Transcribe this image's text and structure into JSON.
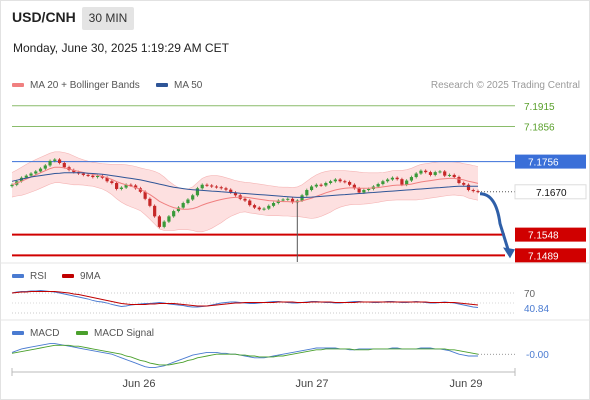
{
  "header": {
    "symbol": "USD/CNH",
    "timeframe": "30 MIN",
    "datetime": "Monday, June 30, 2025 1:19:29 AM CET"
  },
  "legend": {
    "ma20": "MA 20 + Bollinger Bands",
    "ma50": "MA 50",
    "credit": "Research © 2025 Trading Central",
    "rsi": "RSI",
    "rsi_ma": "9MA",
    "macd": "MACD",
    "macd_signal": "MACD Signal"
  },
  "colors": {
    "ma20": "#f08080",
    "ma50": "#2f5597",
    "bollinger_fill": "#fde0e0",
    "green_level": "#5aa02c",
    "blue_level": "#3a6fd8",
    "red_level": "#d00000",
    "arrow": "#2f5fa8",
    "candle_up": "#3a9a3a",
    "candle_down": "#c62828",
    "rsi": "#4a7bd1",
    "rsi_ma": "#c00000",
    "macd": "#4a7bd1",
    "macd_signal": "#4aa02c"
  },
  "chart_data": [
    {
      "type": "candlestick",
      "title": "USD/CNH 30 MIN",
      "x_ticks": [
        "Jun 26",
        "Jun 27",
        "Jun 29"
      ],
      "ylim": [
        7.147,
        7.194
      ],
      "levels": [
        {
          "value": 7.1915,
          "label": "7.1915",
          "kind": "resistance",
          "color": "green"
        },
        {
          "value": 7.1856,
          "label": "7.1856",
          "kind": "resistance",
          "color": "green"
        },
        {
          "value": 7.1756,
          "label": "7.1756",
          "kind": "pivot",
          "color": "blue"
        },
        {
          "value": 7.167,
          "label": "7.1670",
          "kind": "last-price",
          "color": "black"
        },
        {
          "value": 7.1548,
          "label": "7.1548",
          "kind": "support",
          "color": "red"
        },
        {
          "value": 7.1489,
          "label": "7.1489",
          "kind": "support",
          "color": "red"
        }
      ],
      "arrow": {
        "direction": "down",
        "from": 7.167,
        "to": 7.1489
      },
      "close": [
        7.169,
        7.17,
        7.171,
        7.1716,
        7.1722,
        7.1728,
        7.1736,
        7.1745,
        7.1758,
        7.1762,
        7.1752,
        7.174,
        7.1732,
        7.1726,
        7.1722,
        7.1718,
        7.1716,
        7.1712,
        7.1715,
        7.171,
        7.17,
        7.1695,
        7.1678,
        7.1682,
        7.169,
        7.1688,
        7.168,
        7.167,
        7.165,
        7.163,
        7.16,
        7.157,
        7.1585,
        7.16,
        7.1615,
        7.1625,
        7.1638,
        7.1648,
        7.166,
        7.168,
        7.169,
        7.1688,
        7.1685,
        7.1683,
        7.168,
        7.1676,
        7.1668,
        7.166,
        7.165,
        7.1645,
        7.1632,
        7.1625,
        7.162,
        7.1622,
        7.163,
        7.1638,
        7.1645,
        7.1648,
        7.165,
        7.164,
        7.1645,
        7.166,
        7.1675,
        7.1685,
        7.169,
        7.1688,
        7.1695,
        7.17,
        7.1705,
        7.17,
        7.1698,
        7.169,
        7.168,
        7.1668,
        7.1675,
        7.1678,
        7.1685,
        7.1692,
        7.17,
        7.1705,
        7.171,
        7.1706,
        7.169,
        7.1702,
        7.1712,
        7.1722,
        7.173,
        7.1726,
        7.1718,
        7.1726,
        7.1728,
        7.1716,
        7.1718,
        7.1712,
        7.1695,
        7.169,
        7.1675,
        7.1672,
        7.167
      ],
      "ma20": [
        7.169,
        7.1695,
        7.17,
        7.1706,
        7.1712,
        7.1718,
        7.1724,
        7.173,
        7.1736,
        7.174,
        7.174,
        7.1738,
        7.1735,
        7.1731,
        7.1728,
        7.1725,
        7.1722,
        7.172,
        7.1717,
        7.1714,
        7.171,
        7.1705,
        7.1699,
        7.1694,
        7.169,
        7.1686,
        7.1682,
        7.1677,
        7.167,
        7.1662,
        7.1653,
        7.1643,
        7.1636,
        7.163,
        7.1625,
        7.1622,
        7.162,
        7.162,
        7.1622,
        7.1626,
        7.1632,
        7.1637,
        7.1641,
        7.1645,
        7.1648,
        7.1651,
        7.1653,
        7.1654,
        7.1655,
        7.1655,
        7.1653,
        7.1651,
        7.1649,
        7.1647,
        7.1645,
        7.1644,
        7.1643,
        7.1642,
        7.1642,
        7.1641,
        7.1642,
        7.1644,
        7.1648,
        7.1652,
        7.1657,
        7.1662,
        7.1667,
        7.1671,
        7.1675,
        7.1678,
        7.168,
        7.1681,
        7.1681,
        7.168,
        7.168,
        7.168,
        7.1681,
        7.1682,
        7.1684,
        7.1686,
        7.1688,
        7.1689,
        7.1689,
        7.169,
        7.1692,
        7.1695,
        7.1698,
        7.17,
        7.1702,
        7.1704,
        7.1706,
        7.1707,
        7.1708,
        7.1708,
        7.1706,
        7.1704,
        7.17,
        7.1697,
        7.1694
      ],
      "ma50": [
        7.17,
        7.1703,
        7.1706,
        7.1709,
        7.1712,
        7.1714,
        7.1716,
        7.1718,
        7.172,
        7.1722,
        7.1723,
        7.1724,
        7.1724,
        7.1724,
        7.1724,
        7.1724,
        7.1723,
        7.1722,
        7.1721,
        7.172,
        7.1718,
        7.1716,
        7.1714,
        7.1712,
        7.171,
        7.1708,
        7.1706,
        7.1704,
        7.1701,
        7.1698,
        7.1695,
        7.1692,
        7.1689,
        7.1686,
        7.1683,
        7.1681,
        7.1679,
        7.1677,
        7.1676,
        7.1675,
        7.1674,
        7.1673,
        7.1672,
        7.1671,
        7.167,
        7.1669,
        7.1668,
        7.1667,
        7.1666,
        7.1665,
        7.1664,
        7.1663,
        7.1662,
        7.1661,
        7.166,
        7.1659,
        7.1658,
        7.1657,
        7.1656,
        7.1655,
        7.1654,
        7.1654,
        7.1654,
        7.1655,
        7.1656,
        7.1657,
        7.1658,
        7.1659,
        7.166,
        7.1661,
        7.1662,
        7.1663,
        7.1664,
        7.1665,
        7.1666,
        7.1667,
        7.1668,
        7.1669,
        7.167,
        7.1671,
        7.1672,
        7.1673,
        7.1674,
        7.1675,
        7.1676,
        7.1677,
        7.1678,
        7.1679,
        7.168,
        7.1681,
        7.1682,
        7.1683,
        7.1684,
        7.1685,
        7.1686,
        7.1686,
        7.1686,
        7.1686,
        7.1686
      ],
      "bollinger_upper": [
        7.1725,
        7.1732,
        7.174,
        7.1748,
        7.1755,
        7.1762,
        7.1768,
        7.1774,
        7.178,
        7.1784,
        7.1784,
        7.1782,
        7.1778,
        7.1772,
        7.1766,
        7.1761,
        7.1757,
        7.1754,
        7.1752,
        7.175,
        7.1749,
        7.1748,
        7.1748,
        7.1748,
        7.1747,
        7.1745,
        7.1742,
        7.1738,
        7.1735,
        7.1732,
        7.1728,
        7.1722,
        7.1712,
        7.17,
        7.169,
        7.1682,
        7.1678,
        7.1678,
        7.1684,
        7.1696,
        7.1708,
        7.1714,
        7.1716,
        7.1716,
        7.1714,
        7.171,
        7.1706,
        7.1702,
        7.1699,
        7.1697,
        7.1696,
        7.1694,
        7.1692,
        7.169,
        7.1688,
        7.1686,
        7.1684,
        7.1683,
        7.1683,
        7.1682,
        7.1684,
        7.169,
        7.17,
        7.171,
        7.1718,
        7.1724,
        7.1728,
        7.173,
        7.173,
        7.173,
        7.173,
        7.1729,
        7.1728,
        7.1726,
        7.1725,
        7.1724,
        7.1724,
        7.1724,
        7.1725,
        7.1727,
        7.173,
        7.1731,
        7.1731,
        7.1733,
        7.1737,
        7.1743,
        7.1748,
        7.175,
        7.1752,
        7.1754,
        7.1756,
        7.1756,
        7.1756,
        7.1755,
        7.1753,
        7.175,
        7.1748,
        7.1745,
        7.1742
      ],
      "bollinger_lower": [
        7.1655,
        7.1658,
        7.166,
        7.1664,
        7.1669,
        7.1674,
        7.168,
        7.1686,
        7.1692,
        7.1696,
        7.1696,
        7.1694,
        7.1692,
        7.169,
        7.169,
        7.1689,
        7.1687,
        7.1686,
        7.1682,
        7.1678,
        7.1671,
        7.1662,
        7.165,
        7.164,
        7.1633,
        7.1627,
        7.1622,
        7.1616,
        7.1605,
        7.1592,
        7.1578,
        7.1564,
        7.156,
        7.156,
        7.156,
        7.1562,
        7.1562,
        7.1562,
        7.156,
        7.1556,
        7.1556,
        7.156,
        7.1566,
        7.1574,
        7.1582,
        7.1592,
        7.16,
        7.1606,
        7.1611,
        7.1613,
        7.161,
        7.1608,
        7.1606,
        7.1604,
        7.1602,
        7.1602,
        7.1602,
        7.1601,
        7.1601,
        7.16,
        7.16,
        7.1598,
        7.1596,
        7.1594,
        7.1596,
        7.16,
        7.1606,
        7.1612,
        7.162,
        7.1626,
        7.163,
        7.1633,
        7.1634,
        7.1634,
        7.1635,
        7.1636,
        7.1638,
        7.164,
        7.1643,
        7.1645,
        7.1646,
        7.1647,
        7.1647,
        7.1647,
        7.1647,
        7.1647,
        7.1648,
        7.165,
        7.1652,
        7.1654,
        7.1656,
        7.1658,
        7.166,
        7.1661,
        7.1659,
        7.1658,
        7.1652,
        7.1649,
        7.1646
      ]
    },
    {
      "type": "line",
      "title": "RSI",
      "levels": [
        {
          "value": 70,
          "label": "70"
        },
        {
          "value": 30,
          "label": ""
        }
      ],
      "current_label": "40.84",
      "ylim": [
        20,
        80
      ],
      "series": [
        {
          "name": "RSI",
          "values": [
            70,
            72,
            73,
            73,
            74,
            74,
            75,
            74,
            73,
            72,
            70,
            68,
            66,
            64,
            62,
            60,
            58,
            55,
            53,
            52,
            50,
            47,
            45,
            43,
            44,
            46,
            47,
            48,
            49,
            49,
            50,
            51,
            50,
            48,
            47,
            46,
            45,
            43,
            42,
            42,
            43,
            44,
            46,
            48,
            50,
            51,
            52,
            52,
            51,
            50,
            49,
            49,
            50,
            51,
            52,
            53,
            53,
            52,
            51,
            50,
            50,
            51,
            52,
            53,
            53,
            52,
            51,
            51,
            50,
            50,
            51,
            52,
            53,
            53,
            52,
            52,
            51,
            51,
            52,
            53,
            53,
            52,
            51,
            51,
            52,
            53,
            52,
            51,
            50,
            50,
            51,
            52,
            51,
            50,
            48,
            46,
            44,
            42,
            41
          ]
        },
        {
          "name": "9MA",
          "values": [
            70,
            71,
            72,
            72,
            73,
            73,
            73,
            73,
            73,
            73,
            72,
            71,
            70,
            68,
            67,
            65,
            63,
            61,
            59,
            57,
            55,
            53,
            51,
            49,
            48,
            47,
            47,
            47,
            47,
            48,
            48,
            49,
            49,
            49,
            49,
            48,
            47,
            46,
            45,
            44,
            44,
            44,
            45,
            46,
            47,
            48,
            49,
            50,
            50,
            51,
            51,
            51,
            51,
            51,
            51,
            51,
            52,
            52,
            52,
            52,
            51,
            51,
            51,
            52,
            52,
            52,
            52,
            52,
            51,
            51,
            51,
            51,
            51,
            52,
            52,
            52,
            52,
            52,
            52,
            52,
            52,
            52,
            52,
            52,
            52,
            52,
            52,
            52,
            51,
            51,
            51,
            51,
            51,
            51,
            50,
            49,
            48,
            47,
            46
          ]
        }
      ]
    },
    {
      "type": "line",
      "title": "MACD",
      "current_label": "-0.00",
      "ylim": [
        -0.002,
        0.0016
      ],
      "series": [
        {
          "name": "MACD",
          "values": [
            0.0002,
            0.0004,
            0.0006,
            0.0007,
            0.0008,
            0.0009,
            0.001,
            0.0011,
            0.0012,
            0.0012,
            0.0011,
            0.001,
            0.0009,
            0.0008,
            0.0007,
            0.0006,
            0.0005,
            0.0004,
            0.0003,
            0.0002,
            0.0001,
            0.0,
            -0.0002,
            -0.0004,
            -0.0006,
            -0.0008,
            -0.001,
            -0.0012,
            -0.0014,
            -0.0015,
            -0.0015,
            -0.0014,
            -0.0013,
            -0.0011,
            -0.0009,
            -0.0007,
            -0.0005,
            -0.0003,
            -0.0001,
            0.0,
            0.0001,
            0.0002,
            0.0002,
            0.0002,
            0.0001,
            0.0001,
            0.0,
            0.0,
            -0.0001,
            -0.0002,
            -0.0003,
            -0.0004,
            -0.0004,
            -0.0004,
            -0.0003,
            -0.0002,
            -0.0001,
            0.0,
            0.0001,
            0.0002,
            0.0003,
            0.0004,
            0.0005,
            0.0006,
            0.0007,
            0.0007,
            0.0007,
            0.0007,
            0.0007,
            0.0006,
            0.0006,
            0.0005,
            0.0005,
            0.0006,
            0.0006,
            0.0006,
            0.0006,
            0.0006,
            0.0006,
            0.0006,
            0.0007,
            0.0007,
            0.0006,
            0.0006,
            0.0006,
            0.0006,
            0.0007,
            0.0007,
            0.0007,
            0.0006,
            0.0006,
            0.0005,
            0.0004,
            0.0002,
            0.0,
            -0.0001,
            -0.0002,
            -0.0002,
            -0.0002
          ]
        },
        {
          "name": "MACD Signal",
          "values": [
            0.0001,
            0.0002,
            0.0003,
            0.0004,
            0.0005,
            0.0006,
            0.0007,
            0.0008,
            0.0009,
            0.001,
            0.001,
            0.001,
            0.001,
            0.0009,
            0.0009,
            0.0008,
            0.0007,
            0.0006,
            0.0005,
            0.0004,
            0.0003,
            0.0002,
            0.0001,
            0.0,
            -0.0002,
            -0.0003,
            -0.0005,
            -0.0007,
            -0.0008,
            -0.001,
            -0.0011,
            -0.0012,
            -0.0012,
            -0.0012,
            -0.0011,
            -0.001,
            -0.0009,
            -0.0007,
            -0.0006,
            -0.0004,
            -0.0003,
            -0.0002,
            -0.0001,
            0.0,
            0.0,
            0.0,
            0.0,
            0.0,
            -0.0001,
            -0.0001,
            -0.0002,
            -0.0002,
            -0.0003,
            -0.0003,
            -0.0003,
            -0.0003,
            -0.0002,
            -0.0002,
            -0.0001,
            0.0,
            0.0001,
            0.0002,
            0.0003,
            0.0004,
            0.0005,
            0.0005,
            0.0006,
            0.0006,
            0.0006,
            0.0006,
            0.0006,
            0.0006,
            0.0005,
            0.0005,
            0.0005,
            0.0005,
            0.0006,
            0.0006,
            0.0006,
            0.0006,
            0.0006,
            0.0006,
            0.0006,
            0.0006,
            0.0006,
            0.0006,
            0.0006,
            0.0006,
            0.0006,
            0.0006,
            0.0006,
            0.0006,
            0.0005,
            0.0005,
            0.0004,
            0.0003,
            0.0002,
            0.0001,
            0.0
          ]
        }
      ]
    }
  ]
}
